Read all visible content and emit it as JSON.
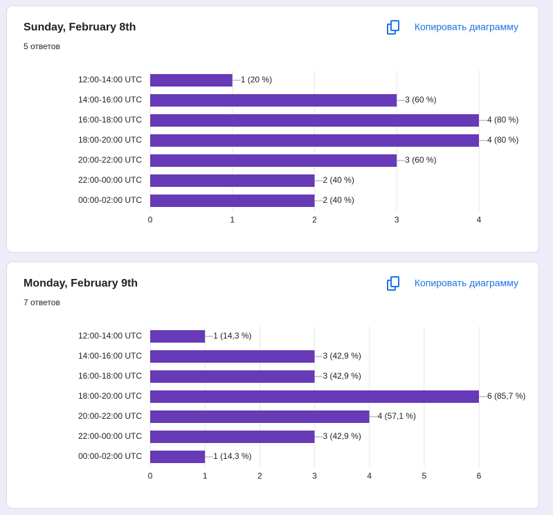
{
  "chart_data": [
    {
      "type": "bar",
      "horizontal": true,
      "title": "Sunday, February 8th",
      "subtitle": "5 ответов",
      "button_label": "Копировать диаграмму",
      "categories": [
        "12:00-14:00 UTC",
        "14:00-16:00 UTC",
        "16:00-18:00 UTC",
        "18:00-20:00 UTC",
        "20:00-22:00 UTC",
        "22:00-00:00 UTC",
        "00:00-02:00 UTC"
      ],
      "values": [
        1,
        3,
        4,
        4,
        3,
        2,
        2
      ],
      "value_labels": [
        "1 (20 %)",
        "3 (60 %)",
        "4 (80 %)",
        "4 (80 %)",
        "3 (60 %)",
        "2 (40 %)",
        "2 (40 %)"
      ],
      "color": "#673ab7",
      "xlim": [
        0,
        4
      ],
      "xticks": [
        0,
        1,
        2,
        3,
        4
      ],
      "grid": true
    },
    {
      "type": "bar",
      "horizontal": true,
      "title": "Monday, February 9th",
      "subtitle": "7 ответов",
      "button_label": "Копировать диаграмму",
      "categories": [
        "12:00-14:00 UTC",
        "14:00-16:00 UTC",
        "16:00-18:00 UTC",
        "18:00-20:00 UTC",
        "20:00-22:00 UTC",
        "22:00-00:00 UTC",
        "00:00-02:00 UTC"
      ],
      "values": [
        1,
        3,
        3,
        6,
        4,
        3,
        1
      ],
      "value_labels": [
        "1 (14,3 %)",
        "3 (42,9 %)",
        "3 (42,9 %)",
        "6 (85,7 %)",
        "4 (57,1 %)",
        "3 (42,9 %)",
        "1 (14,3 %)"
      ],
      "color": "#673ab7",
      "xlim": [
        0,
        6
      ],
      "xticks": [
        0,
        1,
        2,
        3,
        4,
        5,
        6
      ],
      "grid": true
    }
  ]
}
